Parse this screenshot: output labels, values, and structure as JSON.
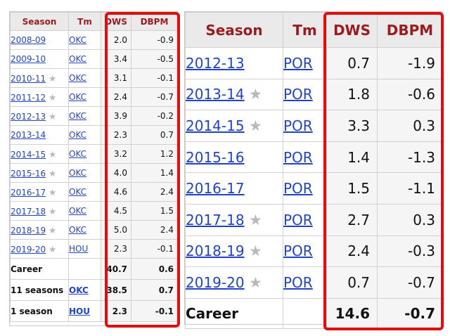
{
  "left_table": {
    "headers": [
      "Season",
      "Tm",
      "DWS",
      "DBPM"
    ],
    "rows": [
      {
        "season": "2008-09",
        "star": false,
        "team": "OKC",
        "dws": "2.0",
        "dbpm": "-0.9"
      },
      {
        "season": "2009-10",
        "star": false,
        "team": "OKC",
        "dws": "3.4",
        "dbpm": "-0.5"
      },
      {
        "season": "2010-11",
        "star": true,
        "team": "OKC",
        "dws": "3.1",
        "dbpm": "-0.1"
      },
      {
        "season": "2011-12",
        "star": true,
        "team": "OKC",
        "dws": "2.4",
        "dbpm": "-0.7"
      },
      {
        "season": "2012-13",
        "star": true,
        "team": "OKC",
        "dws": "3.9",
        "dbpm": "-0.2"
      },
      {
        "season": "2013-14",
        "star": false,
        "team": "OKC",
        "dws": "2.3",
        "dbpm": "0.7"
      },
      {
        "season": "2014-15",
        "star": true,
        "team": "OKC",
        "dws": "3.2",
        "dbpm": "1.2"
      },
      {
        "season": "2015-16",
        "star": true,
        "team": "OKC",
        "dws": "4.0",
        "dbpm": "1.4"
      },
      {
        "season": "2016-17",
        "star": true,
        "team": "OKC",
        "dws": "4.6",
        "dbpm": "2.4"
      },
      {
        "season": "2017-18",
        "star": true,
        "team": "OKC",
        "dws": "4.5",
        "dbpm": "1.5"
      },
      {
        "season": "2018-19",
        "star": true,
        "team": "OKC",
        "dws": "5.0",
        "dbpm": "2.4"
      },
      {
        "season": "2019-20",
        "star": true,
        "team": "HOU",
        "dws": "2.3",
        "dbpm": "-0.1"
      }
    ],
    "summary": [
      {
        "label": "Career",
        "team": "",
        "dws": "40.7",
        "dbpm": "0.6"
      },
      {
        "label": "11 seasons",
        "team": "OKC",
        "dws": "38.5",
        "dbpm": "0.7"
      },
      {
        "label": "1 season",
        "team": "HOU",
        "dws": "2.3",
        "dbpm": "-0.1"
      }
    ]
  },
  "right_table": {
    "headers": [
      "Season",
      "Tm",
      "DWS",
      "DBPM"
    ],
    "rows": [
      {
        "season": "2012-13",
        "star": false,
        "team": "POR",
        "dws": "0.7",
        "dbpm": "-1.9"
      },
      {
        "season": "2013-14",
        "star": true,
        "team": "POR",
        "dws": "1.8",
        "dbpm": "-0.6"
      },
      {
        "season": "2014-15",
        "star": true,
        "team": "POR",
        "dws": "3.3",
        "dbpm": "0.3"
      },
      {
        "season": "2015-16",
        "star": false,
        "team": "POR",
        "dws": "1.4",
        "dbpm": "-1.3"
      },
      {
        "season": "2016-17",
        "star": false,
        "team": "POR",
        "dws": "1.5",
        "dbpm": "-1.1"
      },
      {
        "season": "2017-18",
        "star": true,
        "team": "POR",
        "dws": "2.7",
        "dbpm": "0.3"
      },
      {
        "season": "2018-19",
        "star": true,
        "team": "POR",
        "dws": "2.4",
        "dbpm": "-0.3"
      },
      {
        "season": "2019-20",
        "star": true,
        "team": "POR",
        "dws": "0.7",
        "dbpm": "-0.7"
      }
    ],
    "summary": [
      {
        "label": "Career",
        "team": "",
        "dws": "14.6",
        "dbpm": "-0.7"
      }
    ]
  },
  "star_glyph": "★",
  "colors": {
    "header_text": "#9b1b1e",
    "link": "#2144c6",
    "star": "#b9b9b9",
    "highlight_box": "#e10e0e",
    "stat_column_bg": "#f5f5f5"
  }
}
